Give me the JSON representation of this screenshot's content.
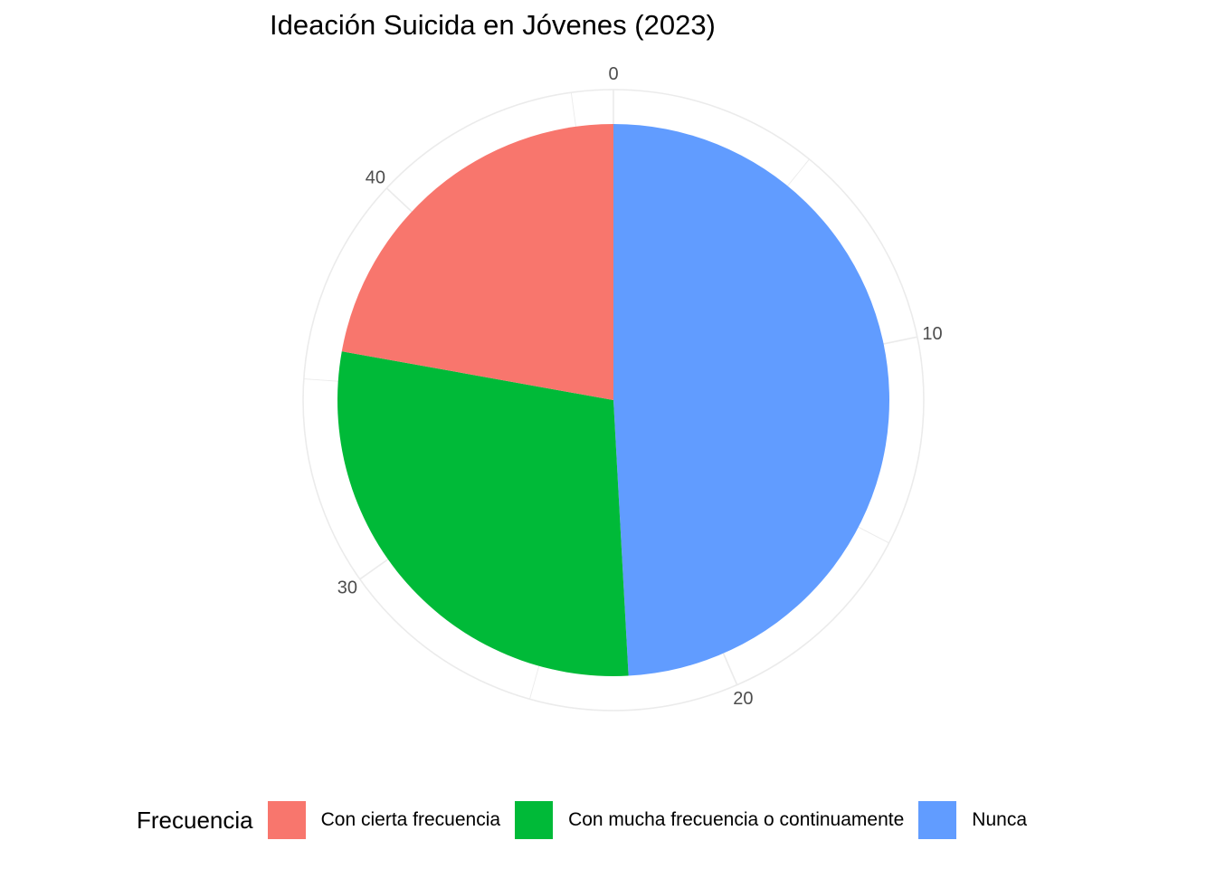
{
  "chart_data": {
    "type": "pie",
    "title": "Ideación Suicida en Jóvenes (2023)",
    "legend_title": "Frecuencia",
    "legend_position": "bottom",
    "theta_ticks": [
      "0",
      "10",
      "20",
      "30",
      "40"
    ],
    "theta_tick_values": [
      0,
      10,
      20,
      30,
      40
    ],
    "theta_max": 46,
    "slices": [
      {
        "label": "Nunca",
        "value": 22.6,
        "color": "#619CFF"
      },
      {
        "label": "Con mucha frecuencia o continuamente",
        "value": 13.2,
        "color": "#00BA38"
      },
      {
        "label": "Con cierta frecuencia",
        "value": 10.2,
        "color": "#F8766D"
      }
    ],
    "legend": [
      {
        "label": "Con cierta frecuencia",
        "color": "#F8766D"
      },
      {
        "label": "Con mucha frecuencia o continuamente",
        "color": "#00BA38"
      },
      {
        "label": "Nunca",
        "color": "#619CFF"
      }
    ]
  }
}
